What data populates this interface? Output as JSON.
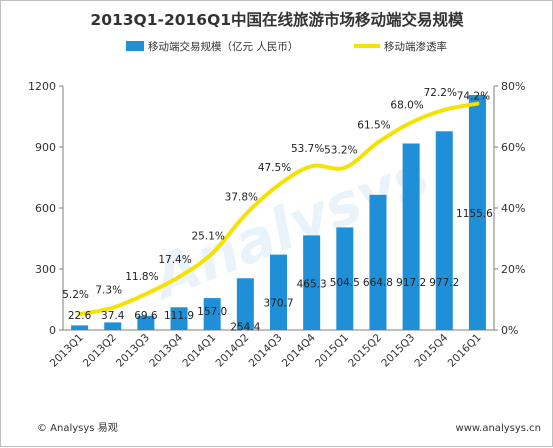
{
  "colors": {
    "bar": "#1f8fd8",
    "line": "#f5e200",
    "axis": "#7f7f7f"
  },
  "footer": {
    "copyright": "© Analysys 易观",
    "url": "www.analysys.cn"
  },
  "watermark": "Analysys",
  "chart_data": {
    "type": "bar+line",
    "title": "2013Q1-2016Q1中国在线旅游市场移动端交易规模",
    "categories": [
      "2013Q1",
      "2013Q2",
      "2013Q3",
      "2013Q4",
      "2014Q1",
      "2014Q2",
      "2014Q3",
      "2014Q4",
      "2015Q1",
      "2015Q2",
      "2015Q3",
      "2015Q4",
      "2016Q1"
    ],
    "series": [
      {
        "name": "移动端交易规模（亿元 人民币）",
        "type": "bar",
        "axis": "left",
        "values": [
          22.6,
          37.4,
          69.6,
          111.9,
          157.0,
          254.4,
          370.7,
          465.3,
          504.5,
          664.8,
          917.2,
          977.2,
          1155.6
        ],
        "labels": [
          "22.6",
          "37.4",
          "69.6",
          "111.9",
          "157.0",
          "254.4",
          "370.7",
          "465.3",
          "504.5",
          "664.8",
          "917.2",
          "977.2",
          "1155.6"
        ]
      },
      {
        "name": "移动端渗透率",
        "type": "line",
        "axis": "right",
        "values": [
          5.2,
          7.3,
          11.8,
          17.4,
          25.1,
          37.8,
          47.5,
          53.7,
          53.2,
          61.5,
          68.0,
          72.2,
          74.2
        ],
        "labels": [
          "5.2%",
          "7.3%",
          "11.8%",
          "17.4%",
          "25.1%",
          "37.8%",
          "47.5%",
          "53.7%",
          "53.2%",
          "61.5%",
          "68.0%",
          "72.2%",
          "74.2%"
        ]
      }
    ],
    "y_left": {
      "min": 0,
      "max": 1200,
      "ticks": [
        "0",
        "300",
        "600",
        "900",
        "1200"
      ]
    },
    "y_right": {
      "min": 0,
      "max": 80,
      "ticks": [
        "0%",
        "20%",
        "40%",
        "60%",
        "80%"
      ]
    },
    "legend_position": "top",
    "grid": false
  }
}
